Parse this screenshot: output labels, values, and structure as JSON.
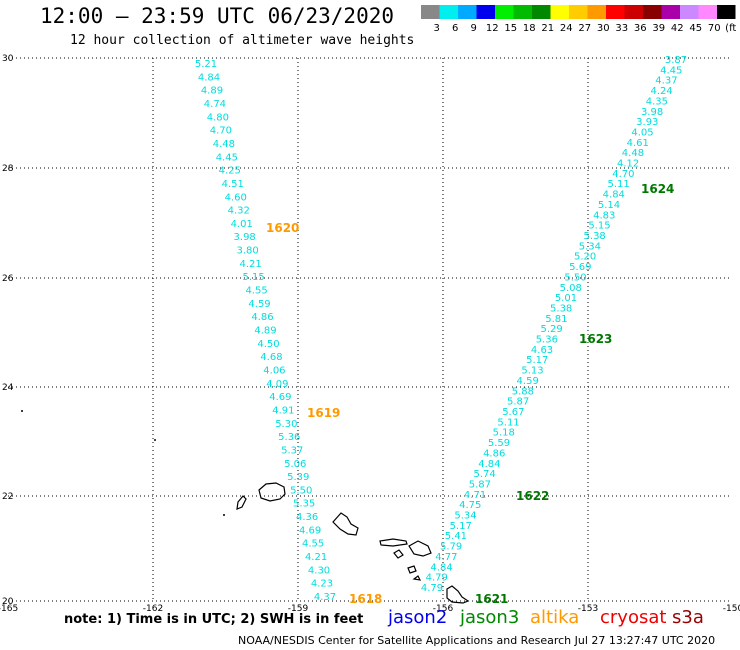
{
  "title": "12:00 – 23:59 UTC 06/23/2020",
  "subtitle": "12 hour collection of altimeter wave heights",
  "legend": {
    "colors": [
      "#888888",
      "#00eeee",
      "#00aaff",
      "#0000ee",
      "#00ee00",
      "#00bb00",
      "#008800",
      "#ffff00",
      "#ffcc00",
      "#ff9900",
      "#ff0000",
      "#cc0000",
      "#880000",
      "#aa00aa",
      "#cc88ff",
      "#ff88ff",
      "#000000"
    ],
    "labels": [
      "3",
      "6",
      "9",
      "12",
      "15",
      "18",
      "21",
      "24",
      "27",
      "30",
      "33",
      "36",
      "39",
      "42",
      "45",
      "70",
      "(ft)"
    ]
  },
  "axes": {
    "lat": [
      "30",
      "28",
      "26",
      "24",
      "22",
      "20"
    ],
    "lon": [
      "-165",
      "-162",
      "-159",
      "-156",
      "-153",
      "-150"
    ]
  },
  "tracks": [
    {
      "color": "#00dddd",
      "values": [
        "5.21",
        "4.84",
        "4.89",
        "4.74",
        "4.80",
        "4.70",
        "4.48",
        "4.45",
        "4.25",
        "4.51",
        "4.60",
        "4.32",
        "4.01",
        "3.98",
        "3.80",
        "4.21",
        "5.15",
        "4.55",
        "4.59",
        "4.86",
        "4.89",
        "4.50",
        "4.68",
        "4.06",
        "4.09",
        "4.69",
        "4.91",
        "5.30",
        "5.36",
        "5.37",
        "5.06",
        "5.39",
        "5.50",
        "5.35",
        "4.36",
        "4.69",
        "4.55",
        "4.21",
        "4.30",
        "4.23",
        "4.37"
      ]
    },
    {
      "color": "#00dddd",
      "values": [
        "3.87",
        "4.45",
        "4.37",
        "4.24",
        "4.35",
        "3.98",
        "3.93",
        "4.05",
        "4.61",
        "4.48",
        "4.12",
        "4.70",
        "5.11",
        "4.84",
        "5.14",
        "4.83",
        "5.15",
        "5.38",
        "5.34",
        "5.20",
        "5.69",
        "5.50",
        "5.08",
        "5.01",
        "5.38",
        "5.81",
        "5.29",
        "5.36",
        "4.63",
        "5.17",
        "5.13",
        "4.59",
        "5.88",
        "5.87",
        "5.67",
        "5.11",
        "5.18",
        "5.59",
        "4.86",
        "4.84",
        "5.74",
        "5.87",
        "4.71",
        "4.75",
        "5.34",
        "5.17",
        "5.41",
        "5.79",
        "4.77",
        "4.84",
        "4.79",
        "4.79"
      ]
    }
  ],
  "time_labels": [
    {
      "text": "1620",
      "color": "#ff9900"
    },
    {
      "text": "1619",
      "color": "#ff9900"
    },
    {
      "text": "1618",
      "color": "#ff9900"
    },
    {
      "text": "1624",
      "color": "#007700"
    },
    {
      "text": "1623",
      "color": "#007700"
    },
    {
      "text": "1622",
      "color": "#007700"
    },
    {
      "text": "1621",
      "color": "#007700"
    }
  ],
  "note": "note:  1) Time is in UTC;  2) SWH is in feet",
  "satellites": [
    {
      "name": "jason2",
      "color": "#0000ee"
    },
    {
      "name": "jason3",
      "color": "#008800"
    },
    {
      "name": "altika",
      "color": "#ff9900"
    },
    {
      "name": "cryosat",
      "color": "#ee0000"
    },
    {
      "name": "s3a",
      "color": "#990000"
    }
  ],
  "credit": "NOAA/NESDIS Center for Satellite Applications and Research    Jul 27 13:27:47 UTC 2020"
}
